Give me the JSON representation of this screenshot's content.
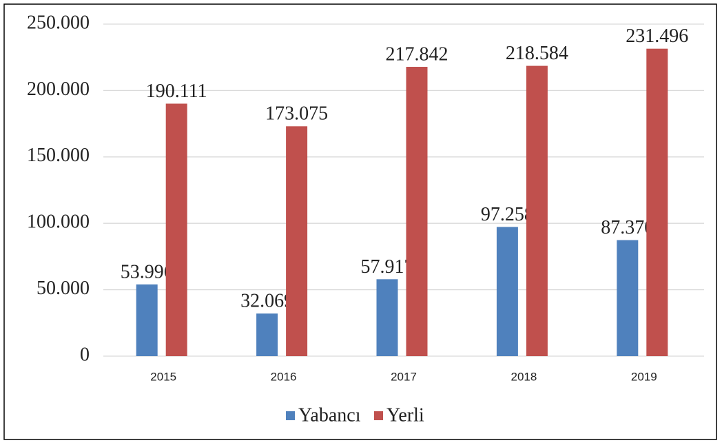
{
  "chart_data": {
    "type": "bar",
    "categories": [
      "2015",
      "2016",
      "2017",
      "2018",
      "2019"
    ],
    "series": [
      {
        "name": "Yabancı",
        "color": "#4f81bd",
        "values": [
          53996,
          32069,
          57917,
          97258,
          87370
        ],
        "value_labels": [
          "53.996",
          "32.069",
          "57.917",
          "97.258",
          "87.370"
        ]
      },
      {
        "name": "Yerli",
        "color": "#c0504d",
        "values": [
          190111,
          173075,
          217842,
          218584,
          231496
        ],
        "value_labels": [
          "190.111",
          "173.075",
          "217.842",
          "218.584",
          "231.496"
        ]
      }
    ],
    "ylim": [
      0,
      250000
    ],
    "yticks": [
      0,
      {
        "value": 50000,
        "label": "50.000"
      },
      {
        "value": 100000,
        "label": "100.000"
      },
      {
        "value": 150000,
        "label": "150.000"
      },
      {
        "value": 200000,
        "label": "200.000"
      },
      {
        "value": 250000,
        "label": "250.000"
      }
    ],
    "grid": true,
    "legend": "bottom"
  }
}
